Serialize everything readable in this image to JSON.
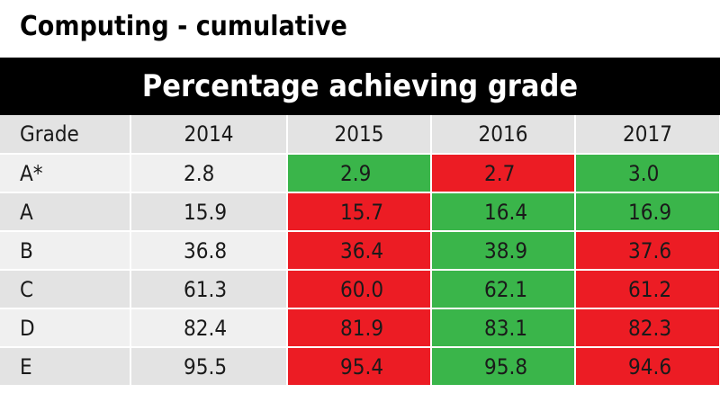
{
  "page": {
    "title": "Computing - cumulative",
    "header": "Percentage achieving grade"
  },
  "colors": {
    "up": "#3ab54a",
    "down": "#ec1c24",
    "header_band": "#000000",
    "row_light": "#f0f0f0",
    "row_dark": "#e3e3e3"
  },
  "chart_data": {
    "type": "table",
    "title": "Computing - cumulative",
    "subtitle": "Percentage achieving grade",
    "columns": [
      "Grade",
      "2014",
      "2015",
      "2016",
      "2017"
    ],
    "rows": [
      {
        "grade": "A*",
        "values": [
          "2.8",
          "2.9",
          "2.7",
          "3.0"
        ],
        "colors": [
          "none",
          "green",
          "red",
          "green"
        ]
      },
      {
        "grade": "A",
        "values": [
          "15.9",
          "15.7",
          "16.4",
          "16.9"
        ],
        "colors": [
          "none",
          "red",
          "green",
          "green"
        ]
      },
      {
        "grade": "B",
        "values": [
          "36.8",
          "36.4",
          "38.9",
          "37.6"
        ],
        "colors": [
          "none",
          "red",
          "green",
          "red"
        ]
      },
      {
        "grade": "C",
        "values": [
          "61.3",
          "60.0",
          "62.1",
          "61.2"
        ],
        "colors": [
          "none",
          "red",
          "green",
          "red"
        ]
      },
      {
        "grade": "D",
        "values": [
          "82.4",
          "81.9",
          "83.1",
          "82.3"
        ],
        "colors": [
          "none",
          "red",
          "green",
          "red"
        ]
      },
      {
        "grade": "E",
        "values": [
          "95.5",
          "95.4",
          "95.8",
          "94.6"
        ],
        "colors": [
          "none",
          "red",
          "green",
          "red"
        ]
      }
    ]
  }
}
